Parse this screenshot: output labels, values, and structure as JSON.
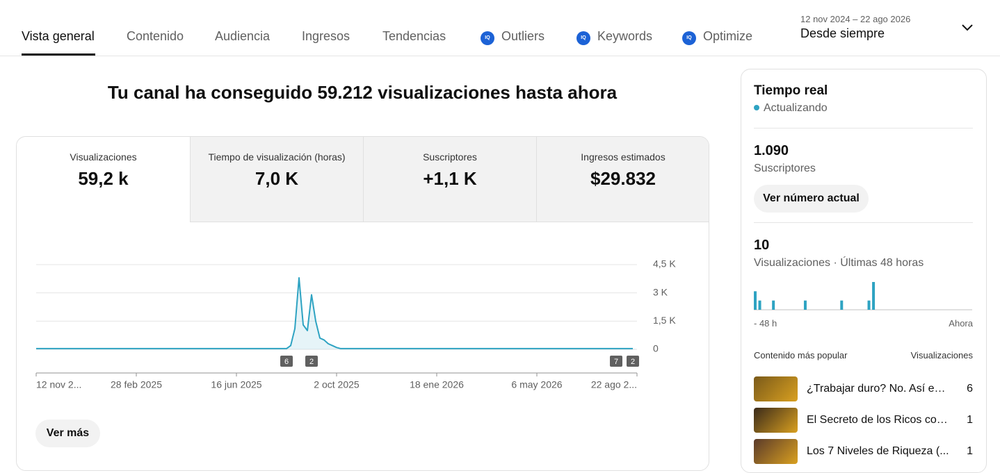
{
  "tabs": [
    "Vista general",
    "Contenido",
    "Audiencia",
    "Ingresos",
    "Tendencias",
    "Outliers",
    "Keywords",
    "Optimize"
  ],
  "tab_icon_text": "IQ",
  "date_range": {
    "range": "12 nov 2024 – 22 ago 2026",
    "label": "Desde siempre"
  },
  "headline": "Tu canal ha conseguido 59.212 visualizaciones hasta ahora",
  "metrics": [
    {
      "label": "Visualizaciones",
      "value": "59,2 k"
    },
    {
      "label": "Tiempo de visualización (horas)",
      "value": "7,0 K"
    },
    {
      "label": "Suscriptores",
      "value": "+1,1 K"
    },
    {
      "label": "Ingresos estimados",
      "value": "$29.832"
    }
  ],
  "chart_data": {
    "type": "line",
    "color": "#2ea3c2",
    "grid": true,
    "values": [
      40,
      40,
      40,
      40,
      40,
      40,
      40,
      40,
      40,
      40,
      40,
      40,
      40,
      40,
      40,
      40,
      40,
      40,
      40,
      40,
      40,
      40,
      40,
      40,
      40,
      40,
      40,
      40,
      40,
      40,
      40,
      40,
      40,
      40,
      40,
      40,
      40,
      40,
      40,
      40,
      40,
      40,
      40,
      40,
      40,
      40,
      40,
      40,
      40,
      40,
      40,
      40,
      40,
      40,
      40,
      40,
      40,
      40,
      40,
      40,
      40,
      200,
      1100,
      3800,
      1300,
      1000,
      2900,
      1500,
      600,
      500,
      300,
      200,
      100,
      40,
      40,
      40,
      40,
      40,
      40,
      40,
      40,
      40,
      40,
      40,
      40,
      40,
      40,
      40,
      40,
      40,
      40,
      40,
      40,
      40,
      40,
      40,
      40,
      40,
      40,
      40,
      40,
      40,
      40,
      40,
      40,
      40,
      40,
      40,
      40,
      40,
      40,
      40,
      40,
      40,
      40,
      40,
      40,
      40,
      40,
      40,
      40,
      40,
      40,
      40,
      40,
      40,
      40,
      40,
      40,
      40,
      40,
      40,
      40,
      40,
      40,
      40,
      40,
      40,
      40,
      40,
      40,
      40,
      40,
      40
    ],
    "xlim": [
      0,
      144
    ],
    "xticks": [
      {
        "value": 0,
        "label": "12 nov 2..."
      },
      {
        "value": 24,
        "label": "28 feb 2025"
      },
      {
        "value": 48,
        "label": "16 jun 2025"
      },
      {
        "value": 72,
        "label": "2 oct 2025"
      },
      {
        "value": 96,
        "label": "18 ene 2026"
      },
      {
        "value": 120,
        "label": "6 may 2026"
      },
      {
        "value": 144,
        "label": "22 ago 2..."
      }
    ],
    "ylim": [
      0,
      4500
    ],
    "yticks": [
      0,
      {
        "value": 1500,
        "label": "1,5 K"
      },
      {
        "value": 3000,
        "label": "3 K"
      },
      {
        "value": 4500,
        "label": "4,5 K"
      }
    ],
    "markers": [
      {
        "x": 60,
        "label": "6"
      },
      {
        "x": 66,
        "label": "2"
      },
      {
        "x": 139,
        "label": "7"
      },
      {
        "x": 143,
        "label": "2"
      }
    ]
  },
  "more_button": "Ver más",
  "realtime": {
    "title": "Tiempo real",
    "status": "Actualizando",
    "subscribers": {
      "value": "1.090",
      "label": "Suscriptores",
      "button": "Ver número actual"
    },
    "views": {
      "value": "10",
      "label": "Visualizaciones · Últimas 48 horas"
    },
    "chart": {
      "type": "bar",
      "color": "#2ea3c2",
      "values": [
        2,
        1,
        0,
        0,
        1,
        0,
        0,
        0,
        0,
        0,
        0,
        1,
        0,
        0,
        0,
        0,
        0,
        0,
        0,
        1,
        0,
        0,
        0,
        0,
        0,
        1,
        3,
        0,
        0,
        0,
        0,
        0,
        0,
        0,
        0,
        0,
        0,
        0,
        0,
        0,
        0,
        0,
        0,
        0,
        0,
        0,
        0,
        0
      ],
      "start_label": "- 48 h",
      "end_label": "Ahora"
    },
    "top": {
      "header": "Contenido más popular",
      "metric": "Visualizaciones",
      "items": [
        {
          "title": "¿Trabajar duro? No. Así es ...",
          "views": 6
        },
        {
          "title": "El Secreto de los Ricos con...",
          "views": 1
        },
        {
          "title": "Los 7 Niveles de Riqueza (...",
          "views": 1
        }
      ]
    }
  }
}
